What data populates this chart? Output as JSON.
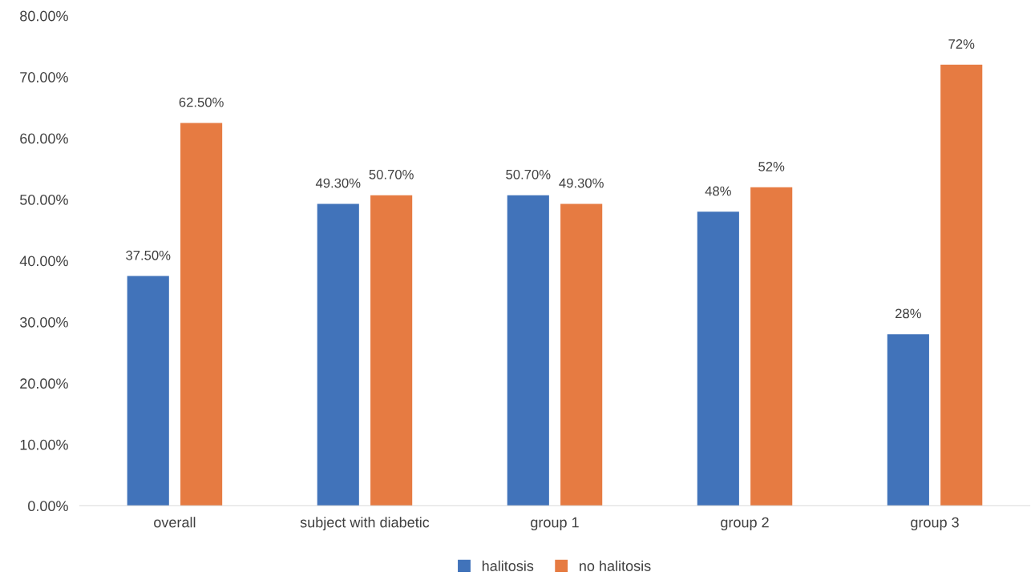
{
  "chart_data": {
    "type": "bar",
    "categories": [
      "overall",
      "subject with diabetic",
      "group 1",
      "group 2",
      "group 3"
    ],
    "series": [
      {
        "name": "halitosis",
        "color": "#4173ba",
        "values": [
          37.5,
          49.3,
          50.7,
          48,
          28
        ],
        "value_labels": [
          "37.50%",
          "49.30%",
          "50.70%",
          "48%",
          "28%"
        ]
      },
      {
        "name": "no halitosis",
        "color": "#e67b42",
        "values": [
          62.5,
          50.7,
          49.3,
          52,
          72
        ],
        "value_labels": [
          "62.50%",
          "50.70%",
          "49.30%",
          "52%",
          "72%"
        ]
      }
    ],
    "ylim": [
      0,
      80
    ],
    "yticks": [
      {
        "value": 0,
        "label": "0.00%"
      },
      {
        "value": 10,
        "label": "10.00%"
      },
      {
        "value": 20,
        "label": "20.00%"
      },
      {
        "value": 30,
        "label": "30.00%"
      },
      {
        "value": 40,
        "label": "40.00%"
      },
      {
        "value": 50,
        "label": "50.00%"
      },
      {
        "value": 60,
        "label": "60.00%"
      },
      {
        "value": 70,
        "label": "70.00%"
      },
      {
        "value": 80,
        "label": "80.00%"
      }
    ],
    "grid": false,
    "legend": "bottom"
  }
}
